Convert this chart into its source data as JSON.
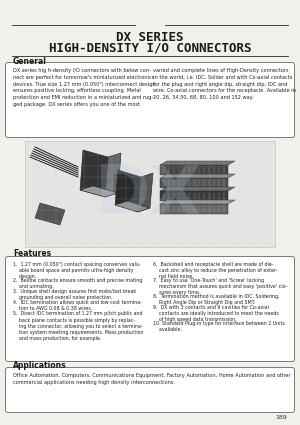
{
  "title_line1": "DX SERIES",
  "title_line2": "HIGH-DENSITY I/O CONNECTORS",
  "page_bg": "#f2f0eb",
  "section_general_title": "General",
  "general_text_left": "DX series hig h-density I/O connectors with below con-\nnect are perfect for tomorrow's miniaturized electronics\ndevices. True size 1.27 mm (0.050\") interconnect design\nensures positive locking, effortless coupling. Metal\nprotection and EMI reduction in a miniaturized and rug-\nged package. DX series offers you one of the most",
  "general_text_right": "varied and complete lines of High-Density connectors\nin the world, i.e. IDC, Solder and with Co-axial contacts\nfor the plug and right angle dip, straight dip, IDC and\nwire. Co-axial connectors for the receptacle. Available in\n20, 26, 34,50, 68, 80, 100 and 152 way.",
  "features_title": "Features",
  "features_left": [
    "1.  1.27 mm (0.050\") contact spacing conserves valu-\n    able board space and permits ultra-high density\n    design.",
    "2.  Bellow contacts ensure smooth and precise mating\n    and unmating.",
    "3.  Unique shell design assures first mate/last break\n    grounding and overall noise protection.",
    "4.  IDC termination allows quick and low cost termina-\n    tion to AWG 0.08 & 0.38 wires.",
    "5.  Direct IDC termination of 1.27 mm pitch public and\n    back plane contacts is possible simply by replac-\n    ing the connector, allowing you to select a termina-\n    tion system meeting requirements. Mass production\n    and mass production, for example."
  ],
  "features_right": [
    "6.  Backshell and receptacle shell are made of die-\n    cast zinc alloy to reduce the penetration of exter-\n    nal field noise.",
    "7.  Easy to use 'One-Touch' and 'Screw' locking\n    mechanism that assures quick and easy 'positive' clo-\n    sures every time.",
    "8.  Termination method is available in IDC, Soldering,\n    Right Angle Dip or Straight Dip and SMT.",
    "9.  DX with 3 contacts and 9 cavities for Co-axial\n    contacts are ideally introduced to meet the needs\n    of high speed data transmission.",
    "10. Standard Plug-in type for interface between 2 Units\n    available."
  ],
  "applications_title": "Applications",
  "applications_text": "Office Automation, Computers, Communications Equipment, Factory Automation, Home Automation and other\ncommercial applications needing high density interconnections.",
  "page_number": "189",
  "line_color_gold": "#b8a060",
  "line_color_dark": "#444444",
  "box_edge": "#666666",
  "text_color": "#1a1a1a",
  "box_face": "#ffffff"
}
